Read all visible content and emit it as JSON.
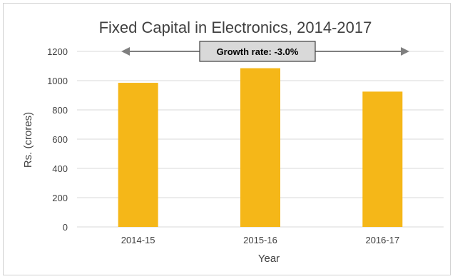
{
  "chart_data": {
    "type": "bar",
    "title": "Fixed Capital in Electronics, 2014-2017",
    "xlabel": "Year",
    "ylabel": "Rs. (crores)",
    "categories": [
      "2014-15",
      "2015-16",
      "2016-17"
    ],
    "values": [
      985,
      1085,
      925
    ],
    "ylim": [
      0,
      1200
    ],
    "yticks": [
      0,
      200,
      400,
      600,
      800,
      1000,
      1200
    ],
    "ytick_labels": [
      "0",
      "200",
      "400",
      "600",
      "800",
      "1000",
      "1200"
    ],
    "grid": true,
    "legend": "none",
    "bar_color": "#f5b718",
    "annotation": "Growth rate: -3.0%"
  },
  "colors": {
    "bar": "#f5b718",
    "grid": "#d9d9d9",
    "arrow": "#7f7f7f",
    "annotation_fill": "#d9d9d9"
  }
}
